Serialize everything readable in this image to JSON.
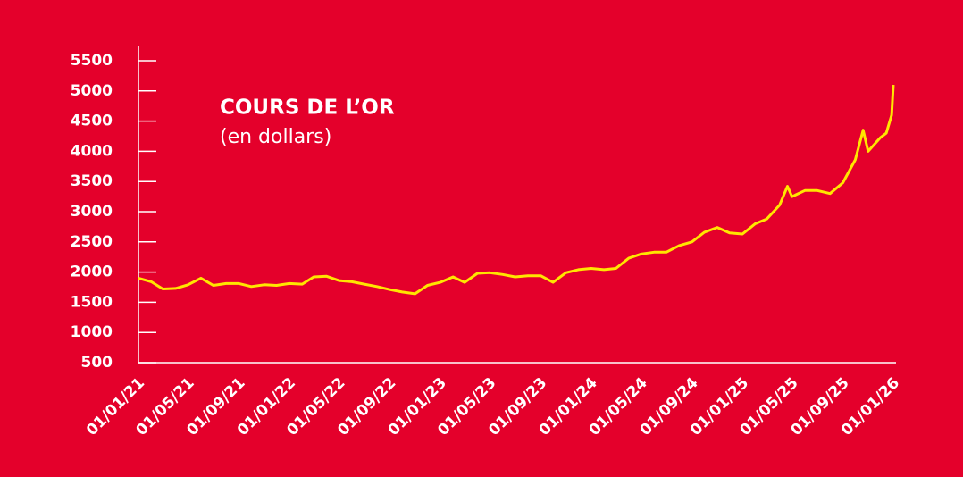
{
  "chart_data": {
    "type": "line",
    "title": "COURS DE L’OR",
    "subtitle": "(en dollars)",
    "x": [
      "2021-01-01",
      "2021-02-01",
      "2021-03-01",
      "2021-04-01",
      "2021-05-01",
      "2021-06-01",
      "2021-07-01",
      "2021-08-01",
      "2021-09-01",
      "2021-10-01",
      "2021-11-01",
      "2021-12-01",
      "2022-01-01",
      "2022-02-01",
      "2022-03-01",
      "2022-04-01",
      "2022-05-01",
      "2022-06-01",
      "2022-07-01",
      "2022-08-01",
      "2022-09-01",
      "2022-10-01",
      "2022-11-01",
      "2022-12-01",
      "2023-01-01",
      "2023-02-01",
      "2023-03-01",
      "2023-04-01",
      "2023-05-01",
      "2023-06-01",
      "2023-07-01",
      "2023-08-01",
      "2023-09-01",
      "2023-10-01",
      "2023-11-01",
      "2023-12-01",
      "2024-01-01",
      "2024-02-01",
      "2024-03-01",
      "2024-04-01",
      "2024-05-01",
      "2024-06-01",
      "2024-07-01",
      "2024-08-01",
      "2024-09-01",
      "2024-10-01",
      "2024-11-01",
      "2024-12-01",
      "2025-01-01",
      "2025-02-01",
      "2025-03-01",
      "2025-04-01",
      "2025-04-20",
      "2025-05-01",
      "2025-06-01",
      "2025-07-01",
      "2025-08-01",
      "2025-09-01",
      "2025-10-01",
      "2025-10-20",
      "2025-11-01",
      "2025-12-01",
      "2025-12-15",
      "2025-12-28",
      "2026-01-01"
    ],
    "series": [
      {
        "name": "Cours de l’or",
        "color": "#ffe600",
        "values": [
          1900,
          1840,
          1720,
          1730,
          1790,
          1900,
          1780,
          1810,
          1810,
          1760,
          1790,
          1780,
          1810,
          1800,
          1920,
          1930,
          1860,
          1840,
          1800,
          1760,
          1710,
          1670,
          1640,
          1780,
          1830,
          1920,
          1830,
          1980,
          1990,
          1960,
          1920,
          1940,
          1940,
          1830,
          1990,
          2040,
          2060,
          2040,
          2060,
          2230,
          2300,
          2330,
          2330,
          2440,
          2500,
          2660,
          2740,
          2650,
          2630,
          2800,
          2880,
          3110,
          3420,
          3250,
          3350,
          3350,
          3300,
          3480,
          3860,
          4350,
          4000,
          4230,
          4300,
          4600,
          5100
        ]
      }
    ],
    "xlim": [
      "2021-01-01",
      "2026-01-01"
    ],
    "xticks": [
      {
        "value": "2021-01-01",
        "label": "01/01/21"
      },
      {
        "value": "2021-05-01",
        "label": "01/05/21"
      },
      {
        "value": "2021-09-01",
        "label": "01/09/21"
      },
      {
        "value": "2022-01-01",
        "label": "01/01/22"
      },
      {
        "value": "2022-05-01",
        "label": "01/05/22"
      },
      {
        "value": "2022-09-01",
        "label": "01/09/22"
      },
      {
        "value": "2023-01-01",
        "label": "01/01/23"
      },
      {
        "value": "2023-05-01",
        "label": "01/05/23"
      },
      {
        "value": "2023-09-01",
        "label": "01/09/23"
      },
      {
        "value": "2024-01-01",
        "label": "01/01/24"
      },
      {
        "value": "2024-05-01",
        "label": "01/05/24"
      },
      {
        "value": "2024-09-01",
        "label": "01/09/24"
      },
      {
        "value": "2025-01-01",
        "label": "01/01/25"
      },
      {
        "value": "2025-05-01",
        "label": "01/05/25"
      },
      {
        "value": "2025-09-01",
        "label": "01/09/25"
      },
      {
        "value": "2026-01-01",
        "label": "01/01/26"
      }
    ],
    "ylim": [
      500,
      5500
    ],
    "yticks": [
      500,
      1000,
      1500,
      2000,
      2500,
      3000,
      3500,
      4000,
      4500,
      5000,
      5500
    ]
  }
}
